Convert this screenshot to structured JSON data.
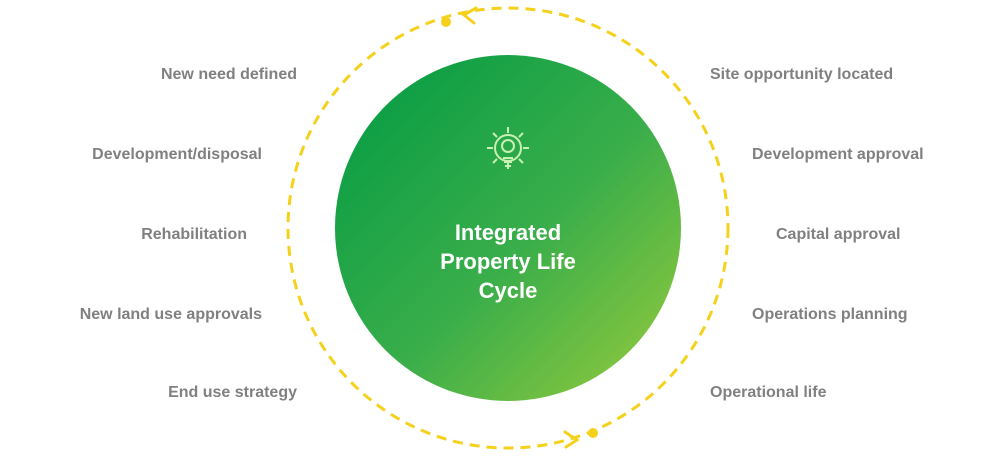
{
  "center": {
    "title": "Integrated Property Life Cycle"
  },
  "left_stages": [
    "New need defined",
    "Development/disposal",
    "Rehabilitation",
    "New land use approvals",
    "End use strategy"
  ],
  "right_stages": [
    "Site opportunity located",
    "Development approval",
    "Capital approval",
    "Operations planning",
    "Operational life"
  ]
}
